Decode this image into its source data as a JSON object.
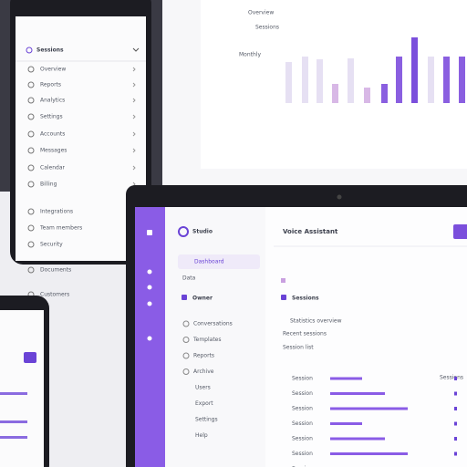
{
  "phone_list": {
    "title": "Sessions",
    "items": [
      "Overview",
      "Reports",
      "Analytics",
      "Settings",
      "Accounts",
      "Messages",
      "Calendar",
      "Billing",
      "Integrations",
      "Team members",
      "Security",
      "Documents",
      "Customers"
    ]
  },
  "chart_panel": {
    "labels": [
      "Overview",
      "Sessions",
      "Monthly"
    ]
  },
  "laptop": {
    "brand": "Studio",
    "nav_section": "Dashboard",
    "nav_sub": "Data",
    "nav_group": "Owner",
    "nav_items": [
      "Conversations",
      "Templates",
      "Reports",
      "Archive",
      "Users",
      "Export",
      "Settings",
      "Help"
    ],
    "header": "Voice Assistant",
    "tag": "Sessions",
    "summary": [
      "Statistics overview",
      "Recent sessions",
      "Session list"
    ],
    "rows": [
      "Session",
      "Session",
      "Session",
      "Session",
      "Session",
      "Session",
      "Session"
    ]
  }
}
